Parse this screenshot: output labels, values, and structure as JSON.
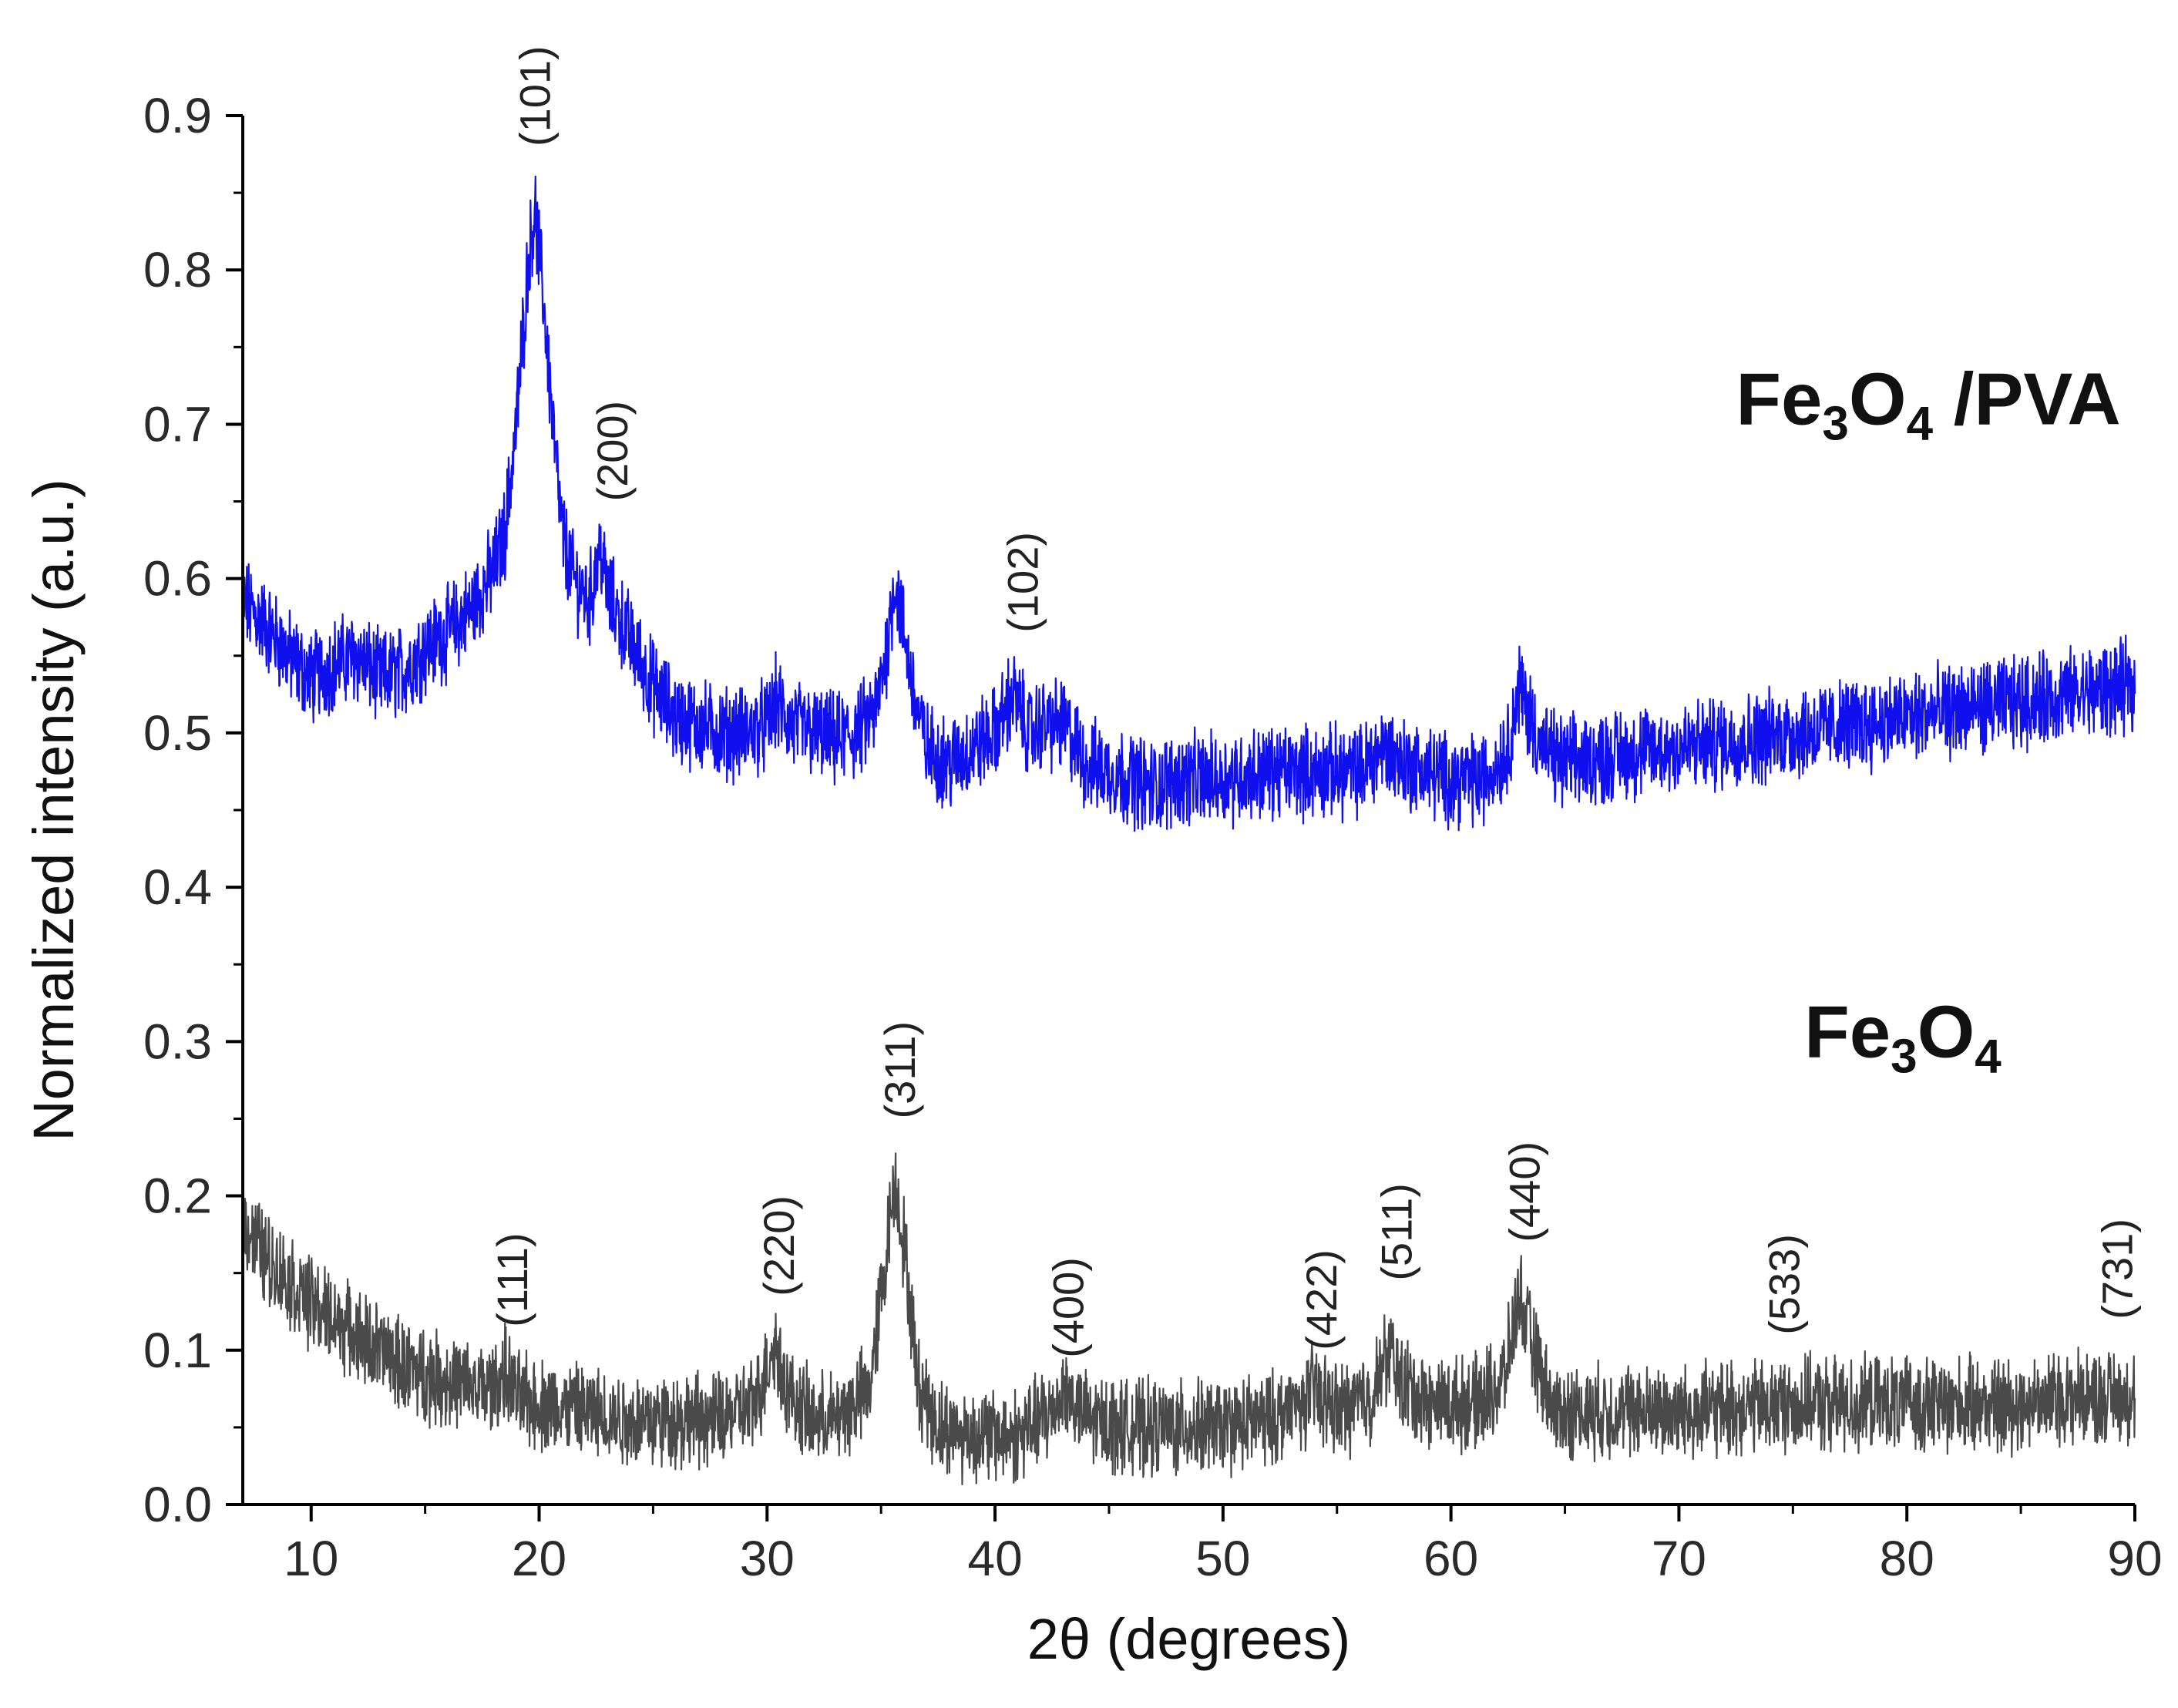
{
  "chart_data": {
    "type": "line",
    "title": "",
    "xlabel": "2θ (degrees)",
    "ylabel": "Normalized intensity (a.u.)",
    "xlim": [
      7,
      90
    ],
    "ylim": [
      0.0,
      0.9
    ],
    "xticks": [
      10,
      20,
      30,
      40,
      50,
      60,
      70,
      80,
      90
    ],
    "yticks": [
      "0.0",
      "0.1",
      "0.2",
      "0.3",
      "0.4",
      "0.5",
      "0.6",
      "0.7",
      "0.8",
      "0.9"
    ],
    "grid": false,
    "series": [
      {
        "name": "Fe₃O₄/PVA",
        "color": "#1010ee",
        "points": [
          [
            7,
            0.585
          ],
          [
            8,
            0.57
          ],
          [
            9,
            0.55
          ],
          [
            10,
            0.535
          ],
          [
            11,
            0.545
          ],
          [
            12,
            0.55
          ],
          [
            13,
            0.535
          ],
          [
            14,
            0.54
          ],
          [
            15,
            0.555
          ],
          [
            16,
            0.565
          ],
          [
            17,
            0.58
          ],
          [
            18,
            0.605
          ],
          [
            18.5,
            0.63
          ],
          [
            19,
            0.7
          ],
          [
            19.5,
            0.8
          ],
          [
            19.8,
            0.84
          ],
          [
            20.2,
            0.78
          ],
          [
            20.6,
            0.7
          ],
          [
            21,
            0.63
          ],
          [
            21.5,
            0.6
          ],
          [
            22.2,
            0.585
          ],
          [
            22.7,
            0.62
          ],
          [
            23,
            0.59
          ],
          [
            24,
            0.56
          ],
          [
            25,
            0.53
          ],
          [
            26,
            0.51
          ],
          [
            27,
            0.505
          ],
          [
            28,
            0.5
          ],
          [
            29,
            0.5
          ],
          [
            30,
            0.505
          ],
          [
            30.4,
            0.52
          ],
          [
            31,
            0.505
          ],
          [
            32,
            0.5
          ],
          [
            33,
            0.495
          ],
          [
            34,
            0.5
          ],
          [
            34.8,
            0.515
          ],
          [
            35.3,
            0.56
          ],
          [
            35.6,
            0.6
          ],
          [
            36,
            0.565
          ],
          [
            36.5,
            0.52
          ],
          [
            37,
            0.49
          ],
          [
            38,
            0.48
          ],
          [
            39,
            0.49
          ],
          [
            40,
            0.5
          ],
          [
            40.8,
            0.525
          ],
          [
            41.5,
            0.5
          ],
          [
            42,
            0.505
          ],
          [
            43,
            0.505
          ],
          [
            44,
            0.48
          ],
          [
            45,
            0.475
          ],
          [
            46,
            0.47
          ],
          [
            47,
            0.465
          ],
          [
            48,
            0.47
          ],
          [
            50,
            0.47
          ],
          [
            52,
            0.475
          ],
          [
            54,
            0.475
          ],
          [
            56,
            0.475
          ],
          [
            57,
            0.49
          ],
          [
            58,
            0.48
          ],
          [
            60,
            0.47
          ],
          [
            61.5,
            0.47
          ],
          [
            62.5,
            0.49
          ],
          [
            63,
            0.53
          ],
          [
            63.5,
            0.51
          ],
          [
            64,
            0.49
          ],
          [
            65,
            0.48
          ],
          [
            67,
            0.485
          ],
          [
            70,
            0.49
          ],
          [
            75,
            0.5
          ],
          [
            80,
            0.51
          ],
          [
            85,
            0.52
          ],
          [
            90,
            0.53
          ]
        ]
      },
      {
        "name": "Fe₃O₄",
        "color": "#4a4a4a",
        "points": [
          [
            7,
            0.185
          ],
          [
            8,
            0.16
          ],
          [
            9,
            0.145
          ],
          [
            10,
            0.13
          ],
          [
            11,
            0.12
          ],
          [
            12,
            0.11
          ],
          [
            13,
            0.1
          ],
          [
            14,
            0.09
          ],
          [
            15,
            0.085
          ],
          [
            16,
            0.08
          ],
          [
            17,
            0.075
          ],
          [
            18,
            0.075
          ],
          [
            18.5,
            0.085
          ],
          [
            19,
            0.07
          ],
          [
            20,
            0.065
          ],
          [
            22,
            0.06
          ],
          [
            24,
            0.055
          ],
          [
            26,
            0.055
          ],
          [
            28,
            0.055
          ],
          [
            29.5,
            0.065
          ],
          [
            30.3,
            0.105
          ],
          [
            31,
            0.07
          ],
          [
            32,
            0.055
          ],
          [
            33,
            0.055
          ],
          [
            34.5,
            0.075
          ],
          [
            35.2,
            0.16
          ],
          [
            35.6,
            0.21
          ],
          [
            36,
            0.17
          ],
          [
            36.6,
            0.08
          ],
          [
            37.5,
            0.05
          ],
          [
            39,
            0.045
          ],
          [
            41,
            0.045
          ],
          [
            42.5,
            0.06
          ],
          [
            43,
            0.075
          ],
          [
            44,
            0.055
          ],
          [
            46,
            0.05
          ],
          [
            48,
            0.05
          ],
          [
            50,
            0.05
          ],
          [
            52,
            0.055
          ],
          [
            53.5,
            0.065
          ],
          [
            54,
            0.075
          ],
          [
            55,
            0.06
          ],
          [
            56.5,
            0.07
          ],
          [
            57.3,
            0.1
          ],
          [
            57.8,
            0.08
          ],
          [
            59,
            0.065
          ],
          [
            61,
            0.065
          ],
          [
            62.3,
            0.08
          ],
          [
            63,
            0.135
          ],
          [
            63.6,
            0.1
          ],
          [
            64.5,
            0.06
          ],
          [
            66,
            0.06
          ],
          [
            70,
            0.06
          ],
          [
            75,
            0.065
          ],
          [
            80,
            0.065
          ],
          [
            85,
            0.065
          ],
          [
            87,
            0.07
          ],
          [
            90,
            0.07
          ]
        ]
      }
    ],
    "annotations": [
      {
        "text": "(101)",
        "x": 19.8,
        "y": 0.88
      },
      {
        "text": "(200)",
        "x": 23.2,
        "y": 0.65
      },
      {
        "text": "(102)",
        "x": 41.2,
        "y": 0.565
      },
      {
        "text": "(111)",
        "x": 18.8,
        "y": 0.115
      },
      {
        "text": "(220)",
        "x": 30.5,
        "y": 0.135
      },
      {
        "text": "(311)",
        "x": 35.8,
        "y": 0.25
      },
      {
        "text": "(400)",
        "x": 43.2,
        "y": 0.095
      },
      {
        "text": "(422)",
        "x": 54.3,
        "y": 0.1
      },
      {
        "text": "(511)",
        "x": 57.6,
        "y": 0.145
      },
      {
        "text": "(440)",
        "x": 63.2,
        "y": 0.17
      },
      {
        "text": "(533)",
        "x": 74.6,
        "y": 0.11
      },
      {
        "text": "(731)",
        "x": 89.2,
        "y": 0.12
      }
    ],
    "legend": [
      {
        "series": "Fe₃O₄/PVA",
        "main": "Fe",
        "sub1": "3",
        "mid": "O",
        "sub2": "4",
        "tail": " /PVA",
        "x": 72.5,
        "y": 0.7
      },
      {
        "series": "Fe₃O₄",
        "main": "Fe",
        "sub1": "3",
        "mid": "O",
        "sub2": "4",
        "tail": "",
        "x": 75.5,
        "y": 0.29
      }
    ]
  }
}
